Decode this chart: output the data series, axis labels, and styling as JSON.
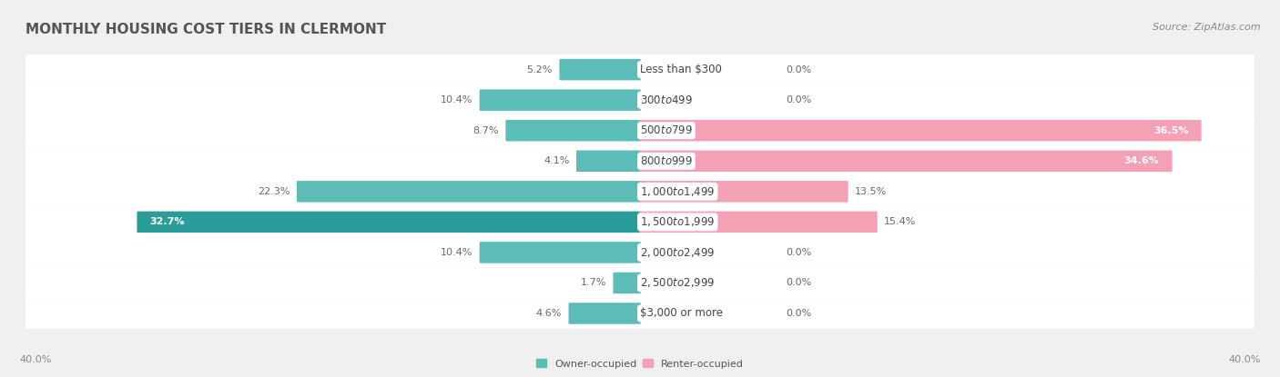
{
  "title": "MONTHLY HOUSING COST TIERS IN CLERMONT",
  "source": "Source: ZipAtlas.com",
  "categories": [
    "Less than $300",
    "$300 to $499",
    "$500 to $799",
    "$800 to $999",
    "$1,000 to $1,499",
    "$1,500 to $1,999",
    "$2,000 to $2,499",
    "$2,500 to $2,999",
    "$3,000 or more"
  ],
  "owner_values": [
    5.2,
    10.4,
    8.7,
    4.1,
    22.3,
    32.7,
    10.4,
    1.7,
    4.6
  ],
  "renter_values": [
    0.0,
    0.0,
    36.5,
    34.6,
    13.5,
    15.4,
    0.0,
    0.0,
    0.0
  ],
  "owner_color": "#5bbcb8",
  "owner_color_dark": "#2a9d9a",
  "renter_color": "#f4a0b5",
  "owner_label": "Owner-occupied",
  "renter_label": "Renter-occupied",
  "xlim": 40.0,
  "axis_label_left": "40.0%",
  "axis_label_right": "40.0%",
  "background_color": "#f0f0f0",
  "row_bg_color": "#ffffff",
  "title_fontsize": 11,
  "source_fontsize": 8,
  "label_fontsize": 8,
  "cat_label_fontsize": 8.5,
  "value_label_fontsize": 8
}
